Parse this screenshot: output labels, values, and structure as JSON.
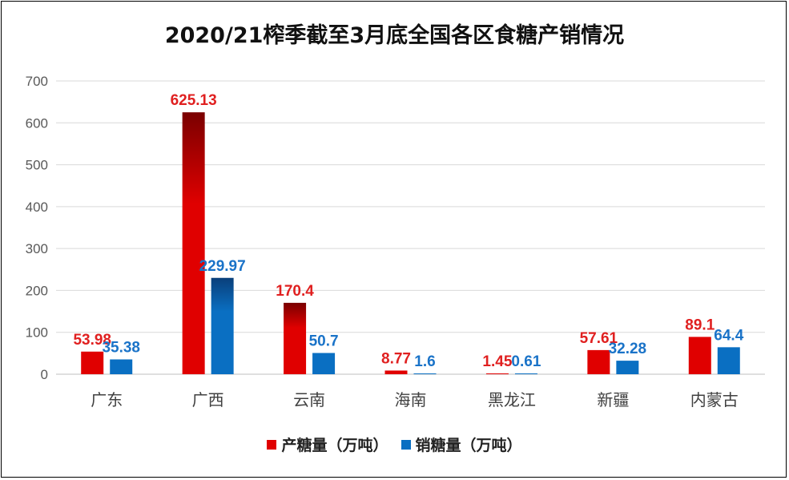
{
  "chart_data": {
    "type": "bar",
    "title": "2020/21榨季截至3月底全国各区食糖产销情况",
    "categories": [
      "广东",
      "广西",
      "云南",
      "海南",
      "黑龙江",
      "新疆",
      "内蒙古"
    ],
    "series": [
      {
        "name": "产糖量（万吨）",
        "values": [
          53.98,
          625.13,
          170.4,
          8.77,
          1.45,
          57.61,
          89.1
        ],
        "labels": [
          "53.98",
          "625.13",
          "170.4",
          "8.77",
          "1.45",
          "57.61",
          "89.1"
        ],
        "color": "#e00000",
        "label_color": "#e02020"
      },
      {
        "name": "销糖量（万吨）",
        "values": [
          35.38,
          229.97,
          50.7,
          1.6,
          0.61,
          32.28,
          64.4
        ],
        "labels": [
          "35.38",
          "229.97",
          "50.7",
          "1.6",
          "0.61",
          "32.28",
          "64.4"
        ],
        "color": "#0a6fc2",
        "label_color": "#1a73c8"
      }
    ],
    "yticks": [
      "0",
      "100",
      "200",
      "300",
      "400",
      "500",
      "600",
      "700"
    ],
    "ylim": [
      0,
      700
    ],
    "grid": true,
    "legend_position": "bottom"
  }
}
